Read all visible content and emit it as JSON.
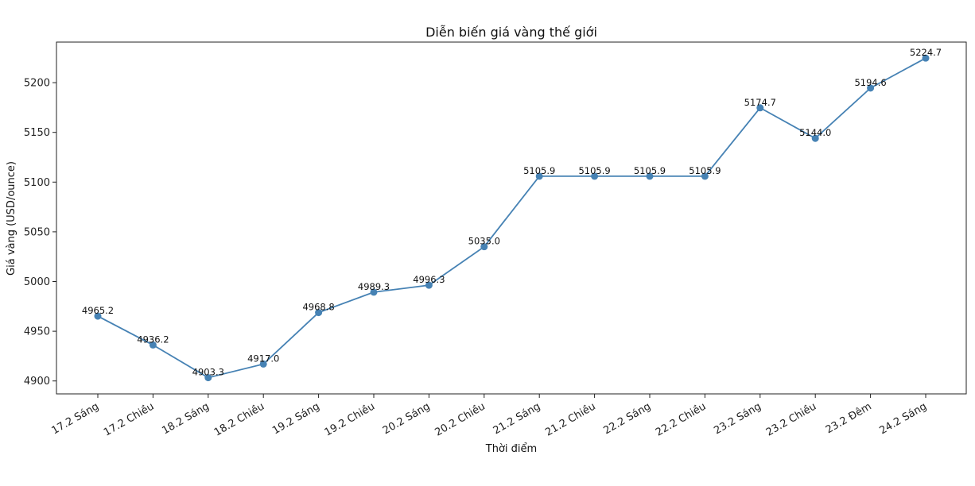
{
  "chart_data": {
    "type": "line",
    "title": "Diễn biến giá vàng thế giới",
    "xlabel": "Thời điểm",
    "ylabel": "Giá vàng (USD/ounce)",
    "categories": [
      "17.2 Sáng",
      "17.2 Chiều",
      "18.2 Sáng",
      "18.2 Chiều",
      "19.2 Sáng",
      "19.2 Chiều",
      "20.2 Sáng",
      "20.2 Chiều",
      "21.2 Sáng",
      "21.2 Chiều",
      "22.2 Sáng",
      "22.2 Chiều",
      "23.2 Sáng",
      "23.2 Chiều",
      "23.2 Đêm",
      "24.2 Sáng"
    ],
    "values": [
      4965.2,
      4936.2,
      4903.3,
      4917.0,
      4968.8,
      4989.3,
      4996.3,
      5035.0,
      5105.9,
      5105.9,
      5105.9,
      5105.9,
      5174.7,
      5144.0,
      5194.6,
      5224.7
    ],
    "data_labels": [
      "4965.2",
      "4936.2",
      "4903.3",
      "4917.0",
      "4968.8",
      "4989.3",
      "4996.3",
      "5035.0",
      "5105.9",
      "5105.9",
      "5105.9",
      "5105.9",
      "5174.7",
      "5144.0",
      "5194.6",
      "5224.7"
    ],
    "yticks": [
      4900,
      4950,
      5000,
      5050,
      5100,
      5150,
      5200
    ],
    "ytick_labels": [
      "4900",
      "4950",
      "5000",
      "5050",
      "5100",
      "5150",
      "5200"
    ],
    "ylim": [
      4887.0,
      5240.8
    ],
    "grid": false,
    "line_color": "#4682b4",
    "marker": "circle"
  }
}
